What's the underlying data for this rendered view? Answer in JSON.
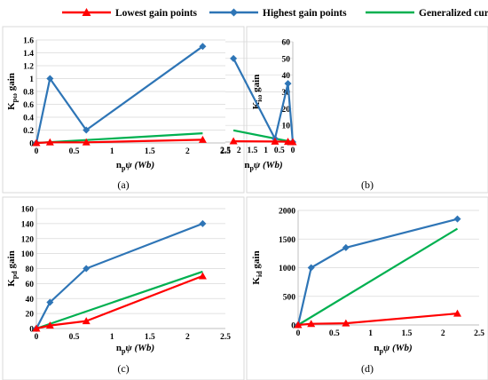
{
  "legend": [
    {
      "name": "Lowest gain points",
      "color": "#ff0000",
      "marker": "triangle"
    },
    {
      "name": "Highest gain points",
      "color": "#2e75b6",
      "marker": "diamond"
    },
    {
      "name": "Generalized curve",
      "color": "#00b050",
      "marker": "none"
    }
  ],
  "chart_data": [
    {
      "type": "line",
      "caption": "(a)",
      "ylabel_main": "K",
      "ylabel_sub": "pω",
      "xlabel_main": "n",
      "xlabel_sub": "p",
      "xlabel_rest": "ψ (Wb)",
      "xlim": [
        0,
        2.5
      ],
      "xticks": [
        "0",
        "0.5",
        "1",
        "1.5",
        "2",
        "2.5"
      ],
      "ylim": [
        0,
        1.6
      ],
      "yticks": [
        "0",
        "0.2",
        "0.4",
        "0.6",
        "0.8",
        "1",
        "1.2",
        "1.4",
        "1.6"
      ],
      "series": [
        {
          "name": "Lowest gain points",
          "x": [
            0,
            0.18,
            0.66,
            2.2
          ],
          "y": [
            0,
            0.01,
            0.01,
            0.05
          ]
        },
        {
          "name": "Highest gain points",
          "x": [
            0,
            0.18,
            0.66,
            2.2
          ],
          "y": [
            0,
            1.0,
            0.2,
            1.5
          ]
        },
        {
          "name": "Generalized curve",
          "x": [
            0,
            2.2
          ],
          "y": [
            0,
            0.15
          ]
        }
      ]
    },
    {
      "type": "line",
      "caption": "(b)",
      "ylabel_main": "K",
      "ylabel_sub": "iω",
      "xlabel_main": "n",
      "xlabel_sub": "p",
      "xlabel_rest": "ψ (Wb)",
      "xlim": [
        0,
        2.5
      ],
      "xticks": [
        "0",
        "0.5",
        "1",
        "1.5",
        "2",
        "2.5"
      ],
      "ylim": [
        0,
        60
      ],
      "yticks": [
        "0",
        "10",
        "20",
        "30",
        "40",
        "50",
        "60"
      ],
      "series": [
        {
          "name": "Lowest gain points",
          "x": [
            0,
            0.18,
            0.66,
            2.2
          ],
          "y": [
            0,
            0.2,
            0.3,
            0.5
          ]
        },
        {
          "name": "Highest gain points",
          "x": [
            0,
            0.18,
            0.66,
            2.2
          ],
          "y": [
            0,
            35,
            2,
            50
          ]
        },
        {
          "name": "Generalized curve",
          "x": [
            0,
            2.2
          ],
          "y": [
            0,
            7
          ]
        }
      ]
    },
    {
      "type": "line",
      "caption": "(c)",
      "ylabel_main": "K",
      "ylabel_sub": "pd",
      "xlabel_main": "n",
      "xlabel_sub": "p",
      "xlabel_rest": "ψ (Wb)",
      "xlim": [
        0,
        2.5
      ],
      "xticks": [
        "0",
        "0.5",
        "1",
        "1.5",
        "2",
        "2.5"
      ],
      "ylim": [
        0,
        160
      ],
      "yticks": [
        "0",
        "20",
        "40",
        "60",
        "80",
        "100",
        "120",
        "140",
        "160"
      ],
      "series": [
        {
          "name": "Lowest gain points",
          "x": [
            0,
            0.18,
            0.66,
            2.2
          ],
          "y": [
            0,
            4,
            10,
            70
          ]
        },
        {
          "name": "Highest gain points",
          "x": [
            0,
            0.18,
            0.66,
            2.2
          ],
          "y": [
            0,
            35,
            80,
            140
          ]
        },
        {
          "name": "Generalized curve",
          "x": [
            0,
            2.2
          ],
          "y": [
            0,
            76
          ]
        }
      ]
    },
    {
      "type": "line",
      "caption": "(d)",
      "ylabel_main": "K",
      "ylabel_sub": "id",
      "xlabel_main": "n",
      "xlabel_sub": "p",
      "xlabel_rest": "ψ (Wb)",
      "xlim": [
        0,
        2.5
      ],
      "xticks": [
        "0",
        "0.5",
        "1",
        "1.5",
        "2",
        "2.5"
      ],
      "ylim": [
        0,
        2000
      ],
      "yticks": [
        "0",
        "500",
        "1000",
        "1500",
        "2000"
      ],
      "series": [
        {
          "name": "Lowest gain points",
          "x": [
            0,
            0.18,
            0.66,
            2.2
          ],
          "y": [
            0,
            20,
            30,
            200
          ]
        },
        {
          "name": "Highest gain points",
          "x": [
            0,
            0.18,
            0.66,
            2.2
          ],
          "y": [
            0,
            1000,
            1350,
            1850
          ]
        },
        {
          "name": "Generalized curve",
          "x": [
            0,
            2.2
          ],
          "y": [
            0,
            1680
          ]
        }
      ]
    }
  ]
}
